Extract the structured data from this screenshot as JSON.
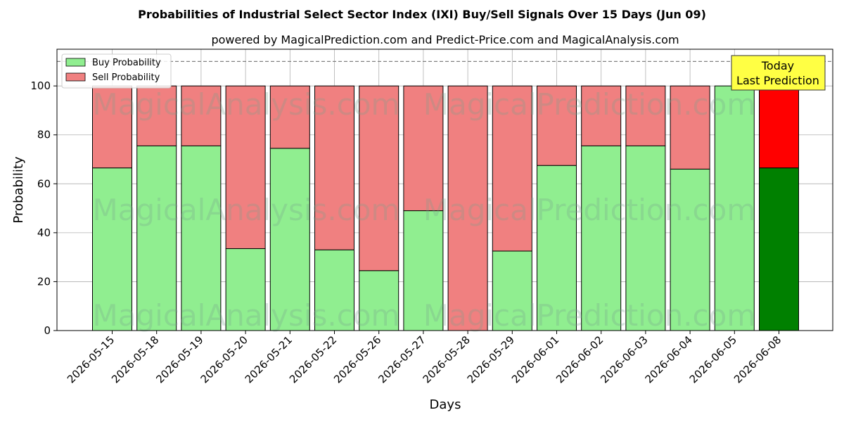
{
  "title": "Probabilities of Industrial Select Sector Index (IXI) Buy/Sell Signals Over 15 Days (Jun 09)",
  "subtitle": "powered by MagicalPrediction.com and Predict-Price.com and MagicalAnalysis.com",
  "watermark": {
    "left": "MagicalAnalysis.com",
    "right": "MagicalPrediction.com"
  },
  "annotation": {
    "line1": "Today",
    "line2": "Last Prediction"
  },
  "colors": {
    "buy": "#90ee90",
    "sell": "#f08080",
    "buy_today": "#008000",
    "sell_today": "#ff0000",
    "annotation_bg": "#ffff44",
    "grid": "#b0b0b0"
  },
  "chart_data": {
    "type": "bar",
    "stacked": true,
    "xlabel": "Days",
    "ylabel": "Probability",
    "ylim": [
      0,
      115
    ],
    "yticks": [
      0,
      20,
      40,
      60,
      80,
      100
    ],
    "reference_line": 110,
    "grid": true,
    "legend_position": "top-left",
    "categories": [
      "2026-05-15",
      "2026-05-18",
      "2026-05-19",
      "2026-05-20",
      "2026-05-21",
      "2026-05-22",
      "2026-05-26",
      "2026-05-27",
      "2026-05-28",
      "2026-05-29",
      "2026-06-01",
      "2026-06-02",
      "2026-06-03",
      "2026-06-04",
      "2026-06-05",
      "2026-06-08"
    ],
    "series": [
      {
        "name": "Buy Probability",
        "values": [
          66.5,
          75.5,
          75.5,
          33.5,
          74.5,
          33,
          24.5,
          49,
          0,
          32.5,
          67.5,
          75.5,
          75.5,
          66,
          100,
          66.5
        ]
      },
      {
        "name": "Sell Probability",
        "values": [
          33.5,
          24.5,
          24.5,
          66.5,
          25.5,
          67,
          75.5,
          51,
          100,
          67.5,
          32.5,
          24.5,
          24.5,
          34,
          0,
          33.5
        ]
      }
    ]
  }
}
